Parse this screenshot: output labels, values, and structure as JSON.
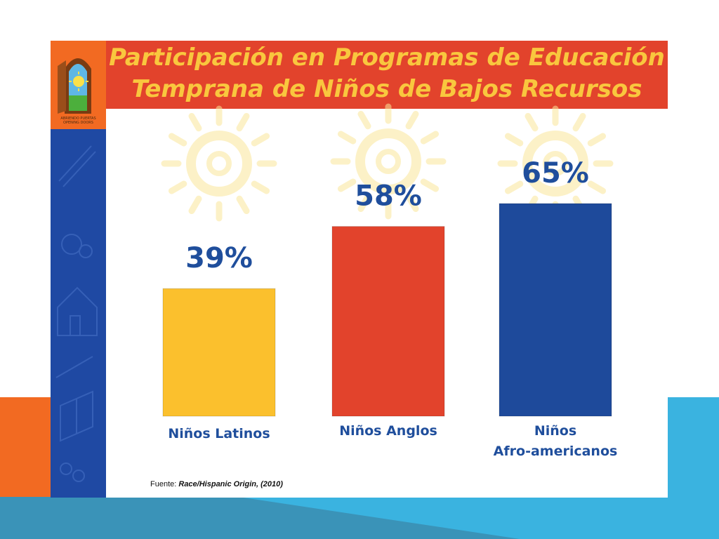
{
  "slide": {
    "title_line1": "Participación en Programas de Educación",
    "title_line2": "Temprana de Niños de Bajos Recursos",
    "logo_caption_line1": "ABRIENDO PUERTAS",
    "logo_caption_line2": "OPENING DOORS",
    "source_prefix": "Fuente:",
    "source_reference": "Race/Hispanic Origin, (2010)"
  },
  "colors": {
    "header": "#e2432c",
    "title": "#f9c73e",
    "side_strip": "#1f49a3",
    "label_text": "#1f4e9c"
  },
  "chart_data": {
    "type": "bar",
    "title": "Participación en Programas de Educación Temprana de Niños de Bajos Recursos",
    "categories": [
      "Niños Latinos",
      "Niños Anglos",
      "Niños Afro-americanos"
    ],
    "category_label_lines": [
      [
        "Niños Latinos"
      ],
      [
        "Niños Anglos"
      ],
      [
        "Niños",
        "Afro-americanos"
      ]
    ],
    "values": [
      39,
      58,
      65
    ],
    "value_labels": [
      "39%",
      "58%",
      "65%"
    ],
    "bar_colors": [
      "#fbc02d",
      "#e2432c",
      "#1e4a9b"
    ],
    "ylim": [
      0,
      100
    ],
    "unit": "%",
    "grid": false,
    "legend": "none"
  }
}
